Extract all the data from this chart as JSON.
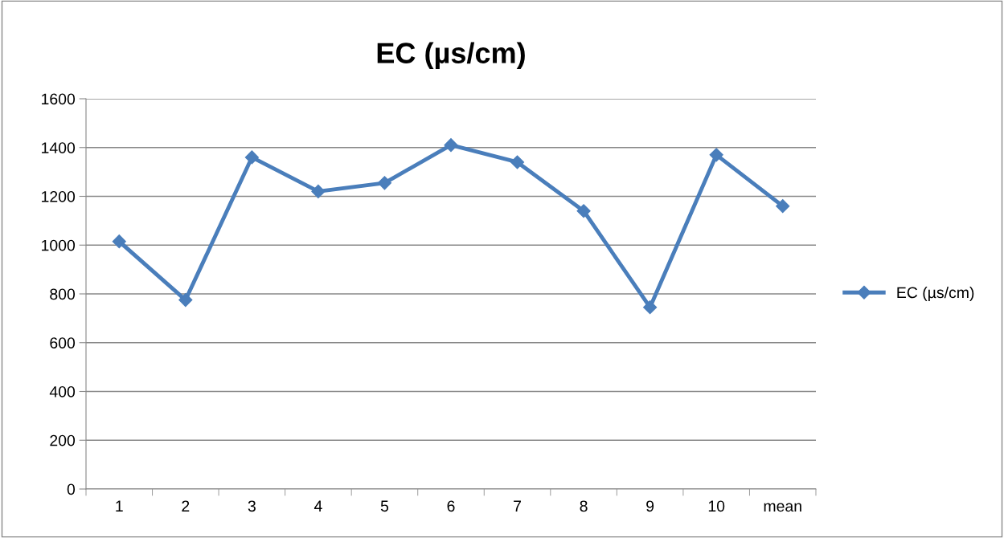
{
  "chart_data": {
    "type": "line",
    "title": "EC (µs/cm)",
    "categories": [
      "1",
      "2",
      "3",
      "4",
      "5",
      "6",
      "7",
      "8",
      "9",
      "10",
      "mean"
    ],
    "series": [
      {
        "name": "EC (µs/cm)",
        "color": "#4a7ebb",
        "values": [
          1015,
          775,
          1360,
          1220,
          1255,
          1410,
          1340,
          1140,
          745,
          1370,
          1160
        ]
      }
    ],
    "ylim": [
      0,
      1600
    ],
    "yticks": [
      0,
      200,
      400,
      600,
      800,
      1000,
      1200,
      1400,
      1600
    ],
    "grid": "y",
    "legend": "right",
    "marker": "diamond",
    "line_style": "solid"
  }
}
